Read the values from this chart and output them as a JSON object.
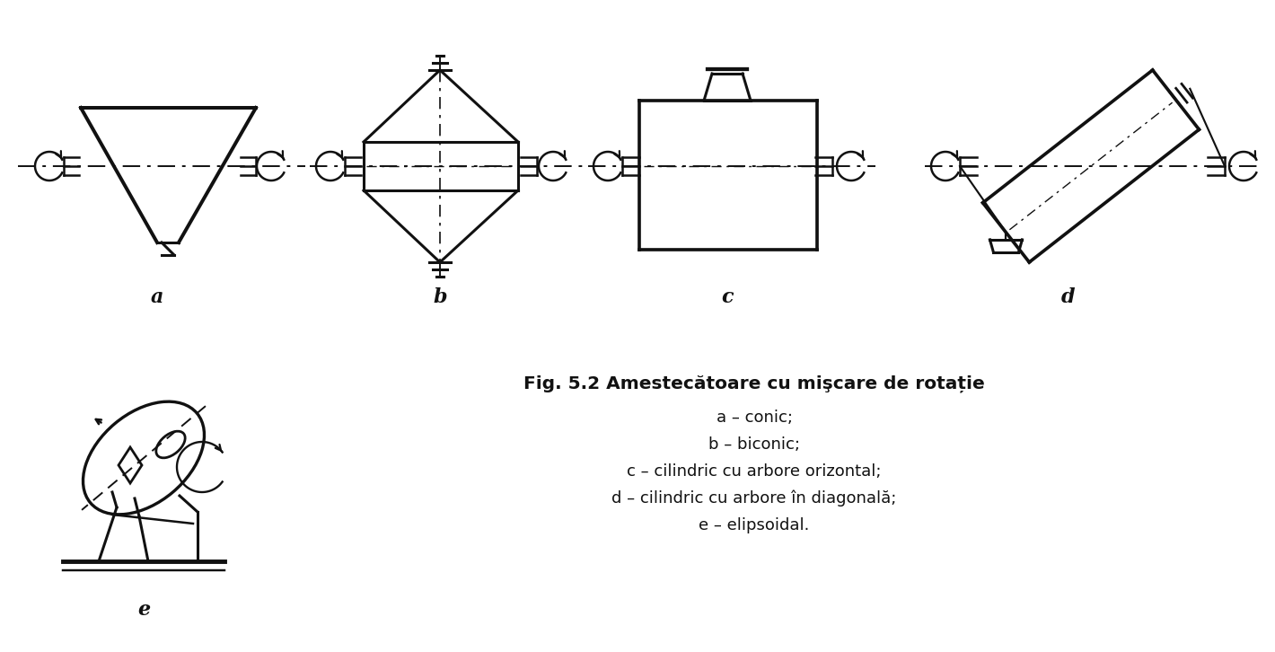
{
  "title": "Fig. 5.2 Amestecătoare cu mişcare de rotație",
  "descriptions": [
    "a – conic;",
    "b – biconic;",
    "c – cilindric cu arbore orizontal;",
    "d – cilindric cu arbore în diagonală;",
    "e – elipsoidal."
  ],
  "background_color": "#ffffff",
  "line_color": "#111111",
  "lw": 2.0,
  "lw_thick": 2.2
}
